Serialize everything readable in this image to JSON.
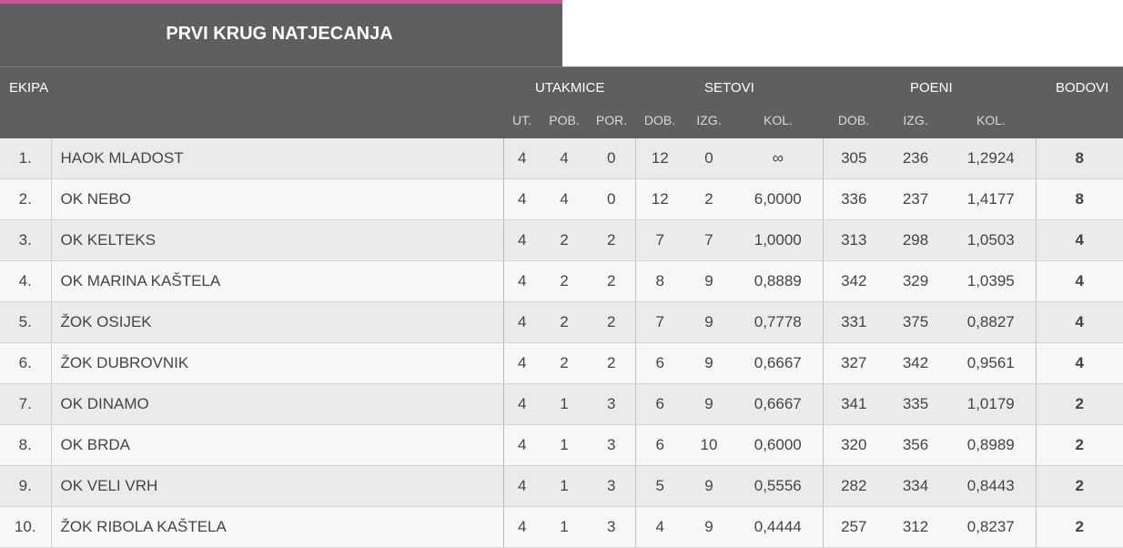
{
  "title": "PRVI KRUG NATJECANJA",
  "header": {
    "ekipa": "EKIPA",
    "utakmice": "UTAKMICE",
    "setovi": "SETOVI",
    "poeni": "POENI",
    "bodovi": "BODOVI",
    "sub": [
      "UT.",
      "POB.",
      "POR.",
      "DOB.",
      "IZG.",
      "KOL.",
      "DOB.",
      "IZG.",
      "KOL."
    ]
  },
  "accent_color": "#c9599a",
  "rows": [
    {
      "rank": "1.",
      "team": "HAOK MLADOST",
      "ut": "4",
      "pob": "4",
      "por": "0",
      "sdob": "12",
      "sizg": "0",
      "skol": "∞",
      "pdob": "305",
      "pizg": "236",
      "pkol": "1,2924",
      "bod": "8"
    },
    {
      "rank": "2.",
      "team": "OK NEBO",
      "ut": "4",
      "pob": "4",
      "por": "0",
      "sdob": "12",
      "sizg": "2",
      "skol": "6,0000",
      "pdob": "336",
      "pizg": "237",
      "pkol": "1,4177",
      "bod": "8"
    },
    {
      "rank": "3.",
      "team": "OK KELTEKS",
      "ut": "4",
      "pob": "2",
      "por": "2",
      "sdob": "7",
      "sizg": "7",
      "skol": "1,0000",
      "pdob": "313",
      "pizg": "298",
      "pkol": "1,0503",
      "bod": "4"
    },
    {
      "rank": "4.",
      "team": "OK MARINA KAŠTELA",
      "ut": "4",
      "pob": "2",
      "por": "2",
      "sdob": "8",
      "sizg": "9",
      "skol": "0,8889",
      "pdob": "342",
      "pizg": "329",
      "pkol": "1,0395",
      "bod": "4"
    },
    {
      "rank": "5.",
      "team": "ŽOK OSIJEK",
      "ut": "4",
      "pob": "2",
      "por": "2",
      "sdob": "7",
      "sizg": "9",
      "skol": "0,7778",
      "pdob": "331",
      "pizg": "375",
      "pkol": "0,8827",
      "bod": "4"
    },
    {
      "rank": "6.",
      "team": "ŽOK DUBROVNIK",
      "ut": "4",
      "pob": "2",
      "por": "2",
      "sdob": "6",
      "sizg": "9",
      "skol": "0,6667",
      "pdob": "327",
      "pizg": "342",
      "pkol": "0,9561",
      "bod": "4"
    },
    {
      "rank": "7.",
      "team": "OK DINAMO",
      "ut": "4",
      "pob": "1",
      "por": "3",
      "sdob": "6",
      "sizg": "9",
      "skol": "0,6667",
      "pdob": "341",
      "pizg": "335",
      "pkol": "1,0179",
      "bod": "2"
    },
    {
      "rank": "8.",
      "team": "OK BRDA",
      "ut": "4",
      "pob": "1",
      "por": "3",
      "sdob": "6",
      "sizg": "10",
      "skol": "0,6000",
      "pdob": "320",
      "pizg": "356",
      "pkol": "0,8989",
      "bod": "2"
    },
    {
      "rank": "9.",
      "team": "OK VELI VRH",
      "ut": "4",
      "pob": "1",
      "por": "3",
      "sdob": "5",
      "sizg": "9",
      "skol": "0,5556",
      "pdob": "282",
      "pizg": "334",
      "pkol": "0,8443",
      "bod": "2"
    },
    {
      "rank": "10.",
      "team": "ŽOK RIBOLA KAŠTELA",
      "ut": "4",
      "pob": "1",
      "por": "3",
      "sdob": "4",
      "sizg": "9",
      "skol": "0,4444",
      "pdob": "257",
      "pizg": "312",
      "pkol": "0,8237",
      "bod": "2"
    }
  ]
}
